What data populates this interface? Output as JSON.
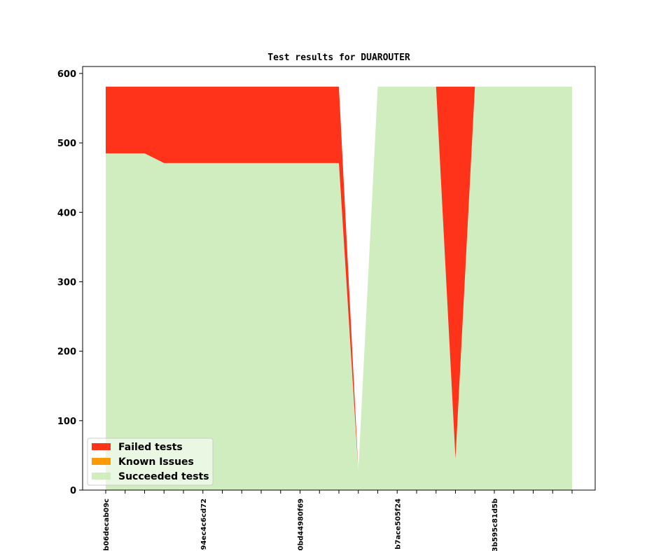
{
  "chart_data": {
    "type": "area",
    "stacked": true,
    "title": "Test results for DUAROUTER",
    "xlabel": "",
    "ylabel": "",
    "ylim": [
      0,
      610
    ],
    "yticks": [
      0,
      100,
      200,
      300,
      400,
      500,
      600
    ],
    "x": [
      "b06decab09c",
      "",
      "",
      "",
      "",
      "94ec4c6cd72",
      "",
      "",
      "",
      "",
      "0bd44980f69",
      "",
      "",
      "",
      "",
      "b7ace505f24",
      "",
      "",
      "",
      "",
      "3b595c81d5b",
      "",
      "",
      "",
      ""
    ],
    "xtick_labels": [
      "b06decab09c",
      "94ec4c6cd72",
      "0bd44980f69",
      "b7ace505f24",
      "3b595c81d5b"
    ],
    "series": [
      {
        "name": "Succeeded tests",
        "color": "#d0edc0",
        "values": [
          485,
          485,
          485,
          471,
          471,
          471,
          471,
          471,
          471,
          471,
          471,
          471,
          471,
          28,
          581,
          581,
          581,
          581,
          45,
          581,
          581,
          581,
          581,
          581,
          581
        ]
      },
      {
        "name": "Known Issues",
        "color": "#ff9900",
        "values": [
          0,
          0,
          0,
          0,
          0,
          0,
          0,
          0,
          0,
          0,
          0,
          0,
          0,
          0,
          0,
          0,
          0,
          0,
          0,
          0,
          0,
          0,
          0,
          0,
          0
        ]
      },
      {
        "name": "Failed tests",
        "color": "#ff331a",
        "values": [
          96,
          96,
          96,
          110,
          110,
          110,
          110,
          110,
          110,
          110,
          110,
          110,
          110,
          0,
          0,
          0,
          0,
          0,
          536,
          0,
          0,
          0,
          0,
          0,
          0
        ]
      }
    ],
    "legend_order": [
      "Failed tests",
      "Known Issues",
      "Succeeded tests"
    ],
    "legend_position": "lower-left",
    "grid": false
  }
}
